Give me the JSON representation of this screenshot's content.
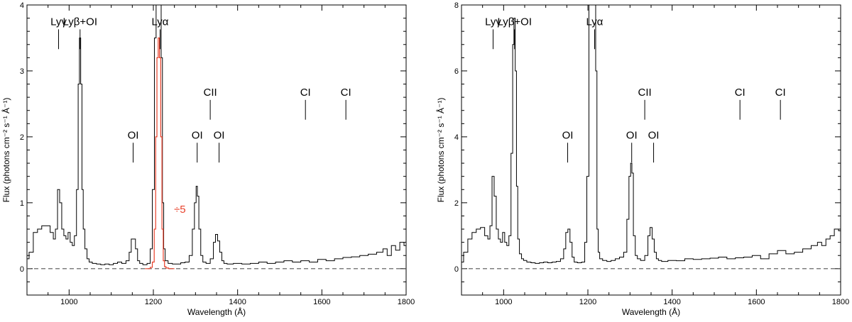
{
  "chart_data": [
    {
      "type": "line",
      "xlabel": "Wavelength (Å)",
      "ylabel": "Flux (photons cm⁻² s⁻¹ Å⁻¹)",
      "xlim": [
        900,
        1800
      ],
      "ylim": [
        -0.4,
        4
      ],
      "xticks": [
        1000,
        1200,
        1400,
        1600,
        1800
      ],
      "yticks": [
        0,
        1,
        2,
        3,
        4
      ],
      "baseline": 0,
      "colors": {
        "spectrum": "#000000",
        "overlay": "#e8402a",
        "baseline": "#555555"
      },
      "series": [
        {
          "role": "spectrum",
          "x": [
            900,
            910,
            920,
            930,
            940,
            950,
            960,
            965,
            970,
            975,
            980,
            985,
            990,
            995,
            1000,
            1005,
            1010,
            1015,
            1020,
            1023,
            1026,
            1029,
            1032,
            1035,
            1040,
            1045,
            1050,
            1060,
            1070,
            1080,
            1090,
            1100,
            1110,
            1120,
            1130,
            1140,
            1145,
            1150,
            1155,
            1160,
            1165,
            1170,
            1180,
            1190,
            1195,
            1200,
            1205,
            1208,
            1211,
            1214,
            1217,
            1220,
            1223,
            1226,
            1230,
            1240,
            1250,
            1260,
            1270,
            1280,
            1290,
            1295,
            1300,
            1303,
            1306,
            1310,
            1315,
            1320,
            1330,
            1340,
            1345,
            1350,
            1355,
            1360,
            1365,
            1370,
            1380,
            1400,
            1420,
            1440,
            1460,
            1480,
            1500,
            1520,
            1540,
            1560,
            1580,
            1600,
            1620,
            1640,
            1660,
            1680,
            1700,
            1720,
            1740,
            1750,
            1760,
            1770,
            1780,
            1790,
            1800
          ],
          "y": [
            0.15,
            0.25,
            0.55,
            0.6,
            0.65,
            0.65,
            0.55,
            0.45,
            0.6,
            1.2,
            1.0,
            0.6,
            0.5,
            0.45,
            0.55,
            0.4,
            0.35,
            0.5,
            1.2,
            2.8,
            3.5,
            2.8,
            1.2,
            0.6,
            0.3,
            0.15,
            0.1,
            0.08,
            0.07,
            0.06,
            0.07,
            0.06,
            0.08,
            0.1,
            0.08,
            0.12,
            0.25,
            0.45,
            0.45,
            0.3,
            0.12,
            0.08,
            0.06,
            0.08,
            0.3,
            1.2,
            3.5,
            4.1,
            4.1,
            4.1,
            4.1,
            3.2,
            1.0,
            0.3,
            0.12,
            0.08,
            0.07,
            0.07,
            0.09,
            0.1,
            0.2,
            0.6,
            1.0,
            1.25,
            1.1,
            0.6,
            0.2,
            0.1,
            0.08,
            0.15,
            0.4,
            0.52,
            0.42,
            0.25,
            0.12,
            0.08,
            0.07,
            0.08,
            0.07,
            0.08,
            0.1,
            0.08,
            0.1,
            0.12,
            0.1,
            0.12,
            0.1,
            0.14,
            0.12,
            0.15,
            0.17,
            0.18,
            0.2,
            0.22,
            0.25,
            0.3,
            0.2,
            0.35,
            0.28,
            0.4,
            0.35
          ]
        },
        {
          "role": "overlay",
          "x": [
            1180,
            1190,
            1195,
            1200,
            1204,
            1207,
            1210,
            1213,
            1216,
            1219,
            1222,
            1225,
            1228,
            1232,
            1240,
            1250
          ],
          "y": [
            0.0,
            0.0,
            0.02,
            0.1,
            0.6,
            2.0,
            3.2,
            3.5,
            3.2,
            2.0,
            0.6,
            0.12,
            0.03,
            0.01,
            0.0,
            0.0
          ]
        }
      ],
      "annotations": [
        {
          "text": "Lyγ",
          "x": 975,
          "y0": 3.33,
          "y1": 3.63
        },
        {
          "text": "Lyβ+OI",
          "x": 1026,
          "y0": 3.33,
          "y1": 3.63
        },
        {
          "text": "Lyα",
          "x": 1216,
          "y0": 3.33,
          "y1": 3.63
        },
        {
          "text": "CII",
          "x": 1335,
          "y0": 2.26,
          "y1": 2.56
        },
        {
          "text": "CI",
          "x": 1561,
          "y0": 2.26,
          "y1": 2.56
        },
        {
          "text": "CI",
          "x": 1657,
          "y0": 2.26,
          "y1": 2.56
        },
        {
          "text": "OI",
          "x": 1152,
          "y0": 1.61,
          "y1": 1.91
        },
        {
          "text": "OI",
          "x": 1304,
          "y0": 1.61,
          "y1": 1.91
        },
        {
          "text": "OI",
          "x": 1356,
          "y0": 1.61,
          "y1": 1.91
        }
      ],
      "scale_note": {
        "text": "÷5",
        "x": 1263,
        "y": 0.85
      }
    },
    {
      "type": "line",
      "xlabel": "Wavelength (Å)",
      "ylabel": "Flux (photons cm⁻² s⁻¹ Å⁻¹)",
      "xlim": [
        900,
        1800
      ],
      "ylim": [
        -0.8,
        8
      ],
      "xticks": [
        1000,
        1200,
        1400,
        1600,
        1800
      ],
      "yticks": [
        0,
        2,
        4,
        6,
        8
      ],
      "baseline": 0,
      "colors": {
        "spectrum": "#000000",
        "baseline": "#555555"
      },
      "series": [
        {
          "role": "spectrum",
          "x": [
            900,
            910,
            920,
            930,
            940,
            950,
            960,
            965,
            970,
            975,
            980,
            985,
            990,
            995,
            1000,
            1005,
            1010,
            1015,
            1020,
            1023,
            1026,
            1029,
            1032,
            1035,
            1040,
            1045,
            1050,
            1060,
            1070,
            1080,
            1090,
            1100,
            1110,
            1120,
            1130,
            1140,
            1145,
            1150,
            1155,
            1160,
            1165,
            1170,
            1180,
            1190,
            1195,
            1200,
            1205,
            1208,
            1211,
            1214,
            1217,
            1220,
            1223,
            1226,
            1230,
            1240,
            1250,
            1260,
            1270,
            1280,
            1290,
            1295,
            1300,
            1303,
            1306,
            1310,
            1315,
            1320,
            1330,
            1340,
            1345,
            1350,
            1355,
            1360,
            1365,
            1370,
            1380,
            1400,
            1420,
            1440,
            1460,
            1480,
            1500,
            1520,
            1540,
            1560,
            1580,
            1600,
            1620,
            1640,
            1660,
            1680,
            1700,
            1720,
            1740,
            1750,
            1760,
            1770,
            1780,
            1790,
            1800
          ],
          "y": [
            0.2,
            0.5,
            0.9,
            1.1,
            1.2,
            1.25,
            1.0,
            0.9,
            1.3,
            2.8,
            2.2,
            1.2,
            0.9,
            0.8,
            1.1,
            0.8,
            0.7,
            1.0,
            3.5,
            6.8,
            7.6,
            6.0,
            2.5,
            0.9,
            0.45,
            0.3,
            0.25,
            0.2,
            0.18,
            0.16,
            0.18,
            0.2,
            0.18,
            0.2,
            0.22,
            0.3,
            0.6,
            1.1,
            1.2,
            0.8,
            0.35,
            0.2,
            0.18,
            0.2,
            0.8,
            2.8,
            8.2,
            8.2,
            8.2,
            8.2,
            8.2,
            6.0,
            1.2,
            0.5,
            0.3,
            0.25,
            0.22,
            0.25,
            0.3,
            0.35,
            0.5,
            1.5,
            2.8,
            3.2,
            2.9,
            1.0,
            0.4,
            0.3,
            0.25,
            0.4,
            1.0,
            1.25,
            0.9,
            0.5,
            0.3,
            0.25,
            0.22,
            0.25,
            0.24,
            0.3,
            0.28,
            0.3,
            0.32,
            0.35,
            0.3,
            0.33,
            0.35,
            0.4,
            0.3,
            0.45,
            0.55,
            0.45,
            0.5,
            0.6,
            0.7,
            0.8,
            0.7,
            0.9,
            1.0,
            1.2,
            1.15
          ]
        }
      ],
      "annotations": [
        {
          "text": "Lyγ",
          "x": 975,
          "y0": 6.66,
          "y1": 7.26
        },
        {
          "text": "Lyβ+OI",
          "x": 1026,
          "y0": 6.66,
          "y1": 7.26
        },
        {
          "text": "Lyα",
          "x": 1216,
          "y0": 6.66,
          "y1": 7.26
        },
        {
          "text": "CII",
          "x": 1335,
          "y0": 4.52,
          "y1": 5.12
        },
        {
          "text": "CI",
          "x": 1561,
          "y0": 4.52,
          "y1": 5.12
        },
        {
          "text": "CI",
          "x": 1657,
          "y0": 4.52,
          "y1": 5.12
        },
        {
          "text": "OI",
          "x": 1152,
          "y0": 3.22,
          "y1": 3.82
        },
        {
          "text": "OI",
          "x": 1304,
          "y0": 3.22,
          "y1": 3.82
        },
        {
          "text": "OI",
          "x": 1356,
          "y0": 3.22,
          "y1": 3.82
        }
      ]
    }
  ]
}
